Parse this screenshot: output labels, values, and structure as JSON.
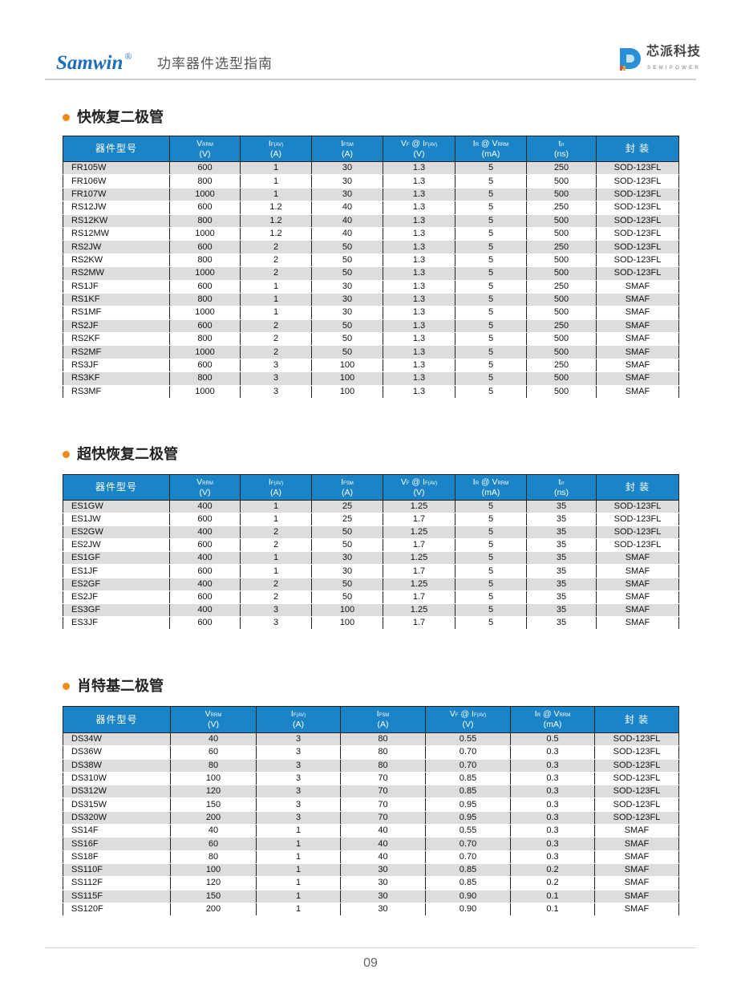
{
  "header": {
    "brand": "Samwin",
    "brand_mark": "®",
    "doc_title": "功率器件选型指南",
    "logo_cn": "芯派科技",
    "logo_en": "SEMIPOWER"
  },
  "colors": {
    "header_blue": "#1a84c7",
    "bullet_orange": "#f08a1c",
    "row_gray": "#dddddd"
  },
  "sections": [
    {
      "title": "快恢复二极管",
      "columns": [
        {
          "main": "器件型号"
        },
        {
          "sym": "V",
          "sub": "RRM",
          "unit": "(V)"
        },
        {
          "sym": "I",
          "sub": "F(AV)",
          "unit": "(A)"
        },
        {
          "sym": "I",
          "sub": "FSM",
          "unit": "(A)"
        },
        {
          "sym": "V",
          "sub": "F",
          "sym2": " @ I",
          "sub2": "F(AV)",
          "unit": "(V)"
        },
        {
          "sym": "I",
          "sub": "R",
          "sym2": " @ V",
          "sub2": "RRM",
          "unit": "(mA)"
        },
        {
          "sym": "t",
          "sub": "rr",
          "unit": "(ns)"
        },
        {
          "main": "封 装"
        }
      ],
      "rows": [
        [
          "FR105W",
          "600",
          "1",
          "30",
          "1.3",
          "5",
          "250",
          "SOD-123FL"
        ],
        [
          "FR106W",
          "800",
          "1",
          "30",
          "1.3",
          "5",
          "500",
          "SOD-123FL"
        ],
        [
          "FR107W",
          "1000",
          "1",
          "30",
          "1.3",
          "5",
          "500",
          "SOD-123FL"
        ],
        [
          "RS12JW",
          "600",
          "1.2",
          "40",
          "1.3",
          "5",
          "250",
          "SOD-123FL"
        ],
        [
          "RS12KW",
          "800",
          "1.2",
          "40",
          "1.3",
          "5",
          "500",
          "SOD-123FL"
        ],
        [
          "RS12MW",
          "1000",
          "1.2",
          "40",
          "1.3",
          "5",
          "500",
          "SOD-123FL"
        ],
        [
          "RS2JW",
          "600",
          "2",
          "50",
          "1.3",
          "5",
          "250",
          "SOD-123FL"
        ],
        [
          "RS2KW",
          "800",
          "2",
          "50",
          "1.3",
          "5",
          "500",
          "SOD-123FL"
        ],
        [
          "RS2MW",
          "1000",
          "2",
          "50",
          "1.3",
          "5",
          "500",
          "SOD-123FL"
        ],
        [
          "RS1JF",
          "600",
          "1",
          "30",
          "1.3",
          "5",
          "250",
          "SMAF"
        ],
        [
          "RS1KF",
          "800",
          "1",
          "30",
          "1.3",
          "5",
          "500",
          "SMAF"
        ],
        [
          "RS1MF",
          "1000",
          "1",
          "30",
          "1.3",
          "5",
          "500",
          "SMAF"
        ],
        [
          "RS2JF",
          "600",
          "2",
          "50",
          "1.3",
          "5",
          "250",
          "SMAF"
        ],
        [
          "RS2KF",
          "800",
          "2",
          "50",
          "1.3",
          "5",
          "500",
          "SMAF"
        ],
        [
          "RS2MF",
          "1000",
          "2",
          "50",
          "1.3",
          "5",
          "500",
          "SMAF"
        ],
        [
          "RS3JF",
          "600",
          "3",
          "100",
          "1.3",
          "5",
          "250",
          "SMAF"
        ],
        [
          "RS3KF",
          "800",
          "3",
          "100",
          "1.3",
          "5",
          "500",
          "SMAF"
        ],
        [
          "RS3MF",
          "1000",
          "3",
          "100",
          "1.3",
          "5",
          "500",
          "SMAF"
        ]
      ]
    },
    {
      "title": "超快恢复二极管",
      "columns": [
        {
          "main": "器件型号"
        },
        {
          "sym": "V",
          "sub": "RRM",
          "unit": "(V)"
        },
        {
          "sym": "I",
          "sub": "F(AV)",
          "unit": "(A)"
        },
        {
          "sym": "I",
          "sub": "FSM",
          "unit": "(A)"
        },
        {
          "sym": "V",
          "sub": "F",
          "sym2": " @ I",
          "sub2": "F(AV)",
          "unit": "(V)"
        },
        {
          "sym": "I",
          "sub": "R",
          "sym2": " @ V",
          "sub2": "RRM",
          "unit": "(mA)"
        },
        {
          "sym": "t",
          "sub": "rr",
          "unit": "(ns)"
        },
        {
          "main": "封 装"
        }
      ],
      "rows": [
        [
          "ES1GW",
          "400",
          "1",
          "25",
          "1.25",
          "5",
          "35",
          "SOD-123FL"
        ],
        [
          "ES1JW",
          "600",
          "1",
          "25",
          "1.7",
          "5",
          "35",
          "SOD-123FL"
        ],
        [
          "ES2GW",
          "400",
          "2",
          "50",
          "1.25",
          "5",
          "35",
          "SOD-123FL"
        ],
        [
          "ES2JW",
          "600",
          "2",
          "50",
          "1.7",
          "5",
          "35",
          "SOD-123FL"
        ],
        [
          "ES1GF",
          "400",
          "1",
          "30",
          "1.25",
          "5",
          "35",
          "SMAF"
        ],
        [
          "ES1JF",
          "600",
          "1",
          "30",
          "1.7",
          "5",
          "35",
          "SMAF"
        ],
        [
          "ES2GF",
          "400",
          "2",
          "50",
          "1.25",
          "5",
          "35",
          "SMAF"
        ],
        [
          "ES2JF",
          "600",
          "2",
          "50",
          "1.7",
          "5",
          "35",
          "SMAF"
        ],
        [
          "ES3GF",
          "400",
          "3",
          "100",
          "1.25",
          "5",
          "35",
          "SMAF"
        ],
        [
          "ES3JF",
          "600",
          "3",
          "100",
          "1.7",
          "5",
          "35",
          "SMAF"
        ]
      ]
    },
    {
      "title": "肖特基二极管",
      "columns": [
        {
          "main": "器件型号"
        },
        {
          "sym": "V",
          "sub": "RRM",
          "unit": "(V)"
        },
        {
          "sym": "I",
          "sub": "F(AV)",
          "unit": "(A)"
        },
        {
          "sym": "I",
          "sub": "FSM",
          "unit": "(A)"
        },
        {
          "sym": "V",
          "sub": "F",
          "sym2": " @ I",
          "sub2": "F(AV)",
          "unit": "(V)"
        },
        {
          "sym": "I",
          "sub": "R",
          "sym2": " @ V",
          "sub2": "RRM",
          "unit": "(mA)"
        },
        {
          "main": "封 装"
        }
      ],
      "rows": [
        [
          "DS34W",
          "40",
          "3",
          "80",
          "0.55",
          "0.5",
          "SOD-123FL"
        ],
        [
          "DS36W",
          "60",
          "3",
          "80",
          "0.70",
          "0.3",
          "SOD-123FL"
        ],
        [
          "DS38W",
          "80",
          "3",
          "80",
          "0.70",
          "0.3",
          "SOD-123FL"
        ],
        [
          "DS310W",
          "100",
          "3",
          "70",
          "0.85",
          "0.3",
          "SOD-123FL"
        ],
        [
          "DS312W",
          "120",
          "3",
          "70",
          "0.85",
          "0.3",
          "SOD-123FL"
        ],
        [
          "DS315W",
          "150",
          "3",
          "70",
          "0.95",
          "0.3",
          "SOD-123FL"
        ],
        [
          "DS320W",
          "200",
          "3",
          "70",
          "0.95",
          "0.3",
          "SOD-123FL"
        ],
        [
          "SS14F",
          "40",
          "1",
          "40",
          "0.55",
          "0.3",
          "SMAF"
        ],
        [
          "SS16F",
          "60",
          "1",
          "40",
          "0.70",
          "0.3",
          "SMAF"
        ],
        [
          "SS18F",
          "80",
          "1",
          "40",
          "0.70",
          "0.3",
          "SMAF"
        ],
        [
          "SS110F",
          "100",
          "1",
          "30",
          "0.85",
          "0.2",
          "SMAF"
        ],
        [
          "SS112F",
          "120",
          "1",
          "30",
          "0.85",
          "0.2",
          "SMAF"
        ],
        [
          "SS115F",
          "150",
          "1",
          "30",
          "0.90",
          "0.1",
          "SMAF"
        ],
        [
          "SS120F",
          "200",
          "1",
          "30",
          "0.90",
          "0.1",
          "SMAF"
        ]
      ]
    }
  ],
  "footer": {
    "page_number": "09"
  }
}
